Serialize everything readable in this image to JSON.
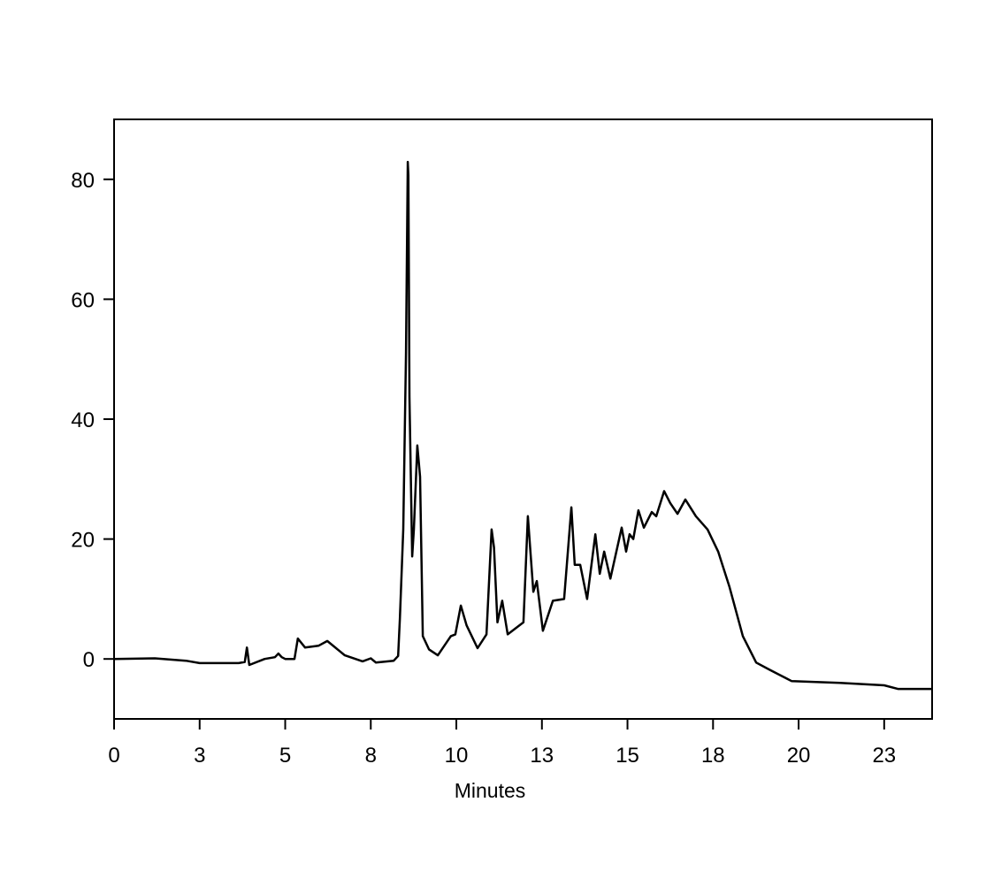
{
  "chart_data": {
    "type": "line",
    "title": "",
    "xlabel": "Minutes",
    "ylabel": "",
    "xlim": [
      0,
      23.9
    ],
    "ylim": [
      -10,
      90
    ],
    "grid": false,
    "x_ticks": [
      {
        "value": 0,
        "label": "0"
      },
      {
        "value": 2.5,
        "label": "3"
      },
      {
        "value": 5,
        "label": "5"
      },
      {
        "value": 7.5,
        "label": "8"
      },
      {
        "value": 10,
        "label": "10"
      },
      {
        "value": 12.5,
        "label": "13"
      },
      {
        "value": 15,
        "label": "15"
      },
      {
        "value": 17.5,
        "label": "18"
      },
      {
        "value": 20,
        "label": "20"
      },
      {
        "value": 22.5,
        "label": "23"
      }
    ],
    "y_ticks": [
      {
        "value": 0,
        "label": "0"
      },
      {
        "value": 20,
        "label": "20"
      },
      {
        "value": 40,
        "label": "40"
      },
      {
        "value": 60,
        "label": "60"
      },
      {
        "value": 80,
        "label": "80"
      }
    ],
    "color": "#000000",
    "series": [
      {
        "x": [
          0,
          1.19,
          2.1,
          2.5,
          3.64,
          3.82,
          3.88,
          3.95,
          4.4,
          4.7,
          4.8,
          4.9,
          5.0,
          5.27,
          5.37,
          5.58,
          5.97,
          6.23,
          6.74,
          7.26,
          7.5,
          7.65,
          8.17,
          8.3,
          8.35,
          8.45,
          8.53,
          8.58,
          8.6,
          8.63,
          8.71,
          8.76,
          8.86,
          8.94,
          9.02,
          9.2,
          9.46,
          9.84,
          9.97,
          10.13,
          10.3,
          10.62,
          10.88,
          11.03,
          11.1,
          11.2,
          11.34,
          11.5,
          11.96,
          12.09,
          12.25,
          12.35,
          12.53,
          12.82,
          13.15,
          13.36,
          13.46,
          13.62,
          13.82,
          14.06,
          14.19,
          14.32,
          14.5,
          14.83,
          14.96,
          15.06,
          15.17,
          15.32,
          15.48,
          15.71,
          15.84,
          16.07,
          16.25,
          16.46,
          16.69,
          17.0,
          17.34,
          17.65,
          17.98,
          18.37,
          18.76,
          19.15,
          19.8,
          21.2,
          22.5,
          22.9,
          23.9
        ],
        "y": [
          0,
          0.1,
          -0.3,
          -0.7,
          -0.7,
          -0.5,
          1.9,
          -1,
          0,
          0.3,
          0.9,
          0.3,
          0,
          0,
          3.4,
          1.9,
          2.2,
          3,
          0.6,
          -0.4,
          0.1,
          -0.6,
          -0.3,
          0.5,
          6.8,
          21.6,
          51,
          82.9,
          80.7,
          43.7,
          17.1,
          21.6,
          35.6,
          30.4,
          3.8,
          1.6,
          0.6,
          3.8,
          4.1,
          8.9,
          5.6,
          1.8,
          4.1,
          21.6,
          18.6,
          6.1,
          9.7,
          4.1,
          6.1,
          23.8,
          11.2,
          13,
          4.7,
          9.7,
          10,
          25.3,
          15.7,
          15.7,
          10,
          20.8,
          14.2,
          17.9,
          13.4,
          21.9,
          17.9,
          20.8,
          20,
          24.8,
          21.9,
          24.5,
          23.8,
          28,
          26,
          24.2,
          26.6,
          23.8,
          21.6,
          17.9,
          12,
          3.8,
          -0.6,
          -1.8,
          -3.7,
          -4,
          -4.4,
          -5,
          -5
        ]
      }
    ]
  }
}
